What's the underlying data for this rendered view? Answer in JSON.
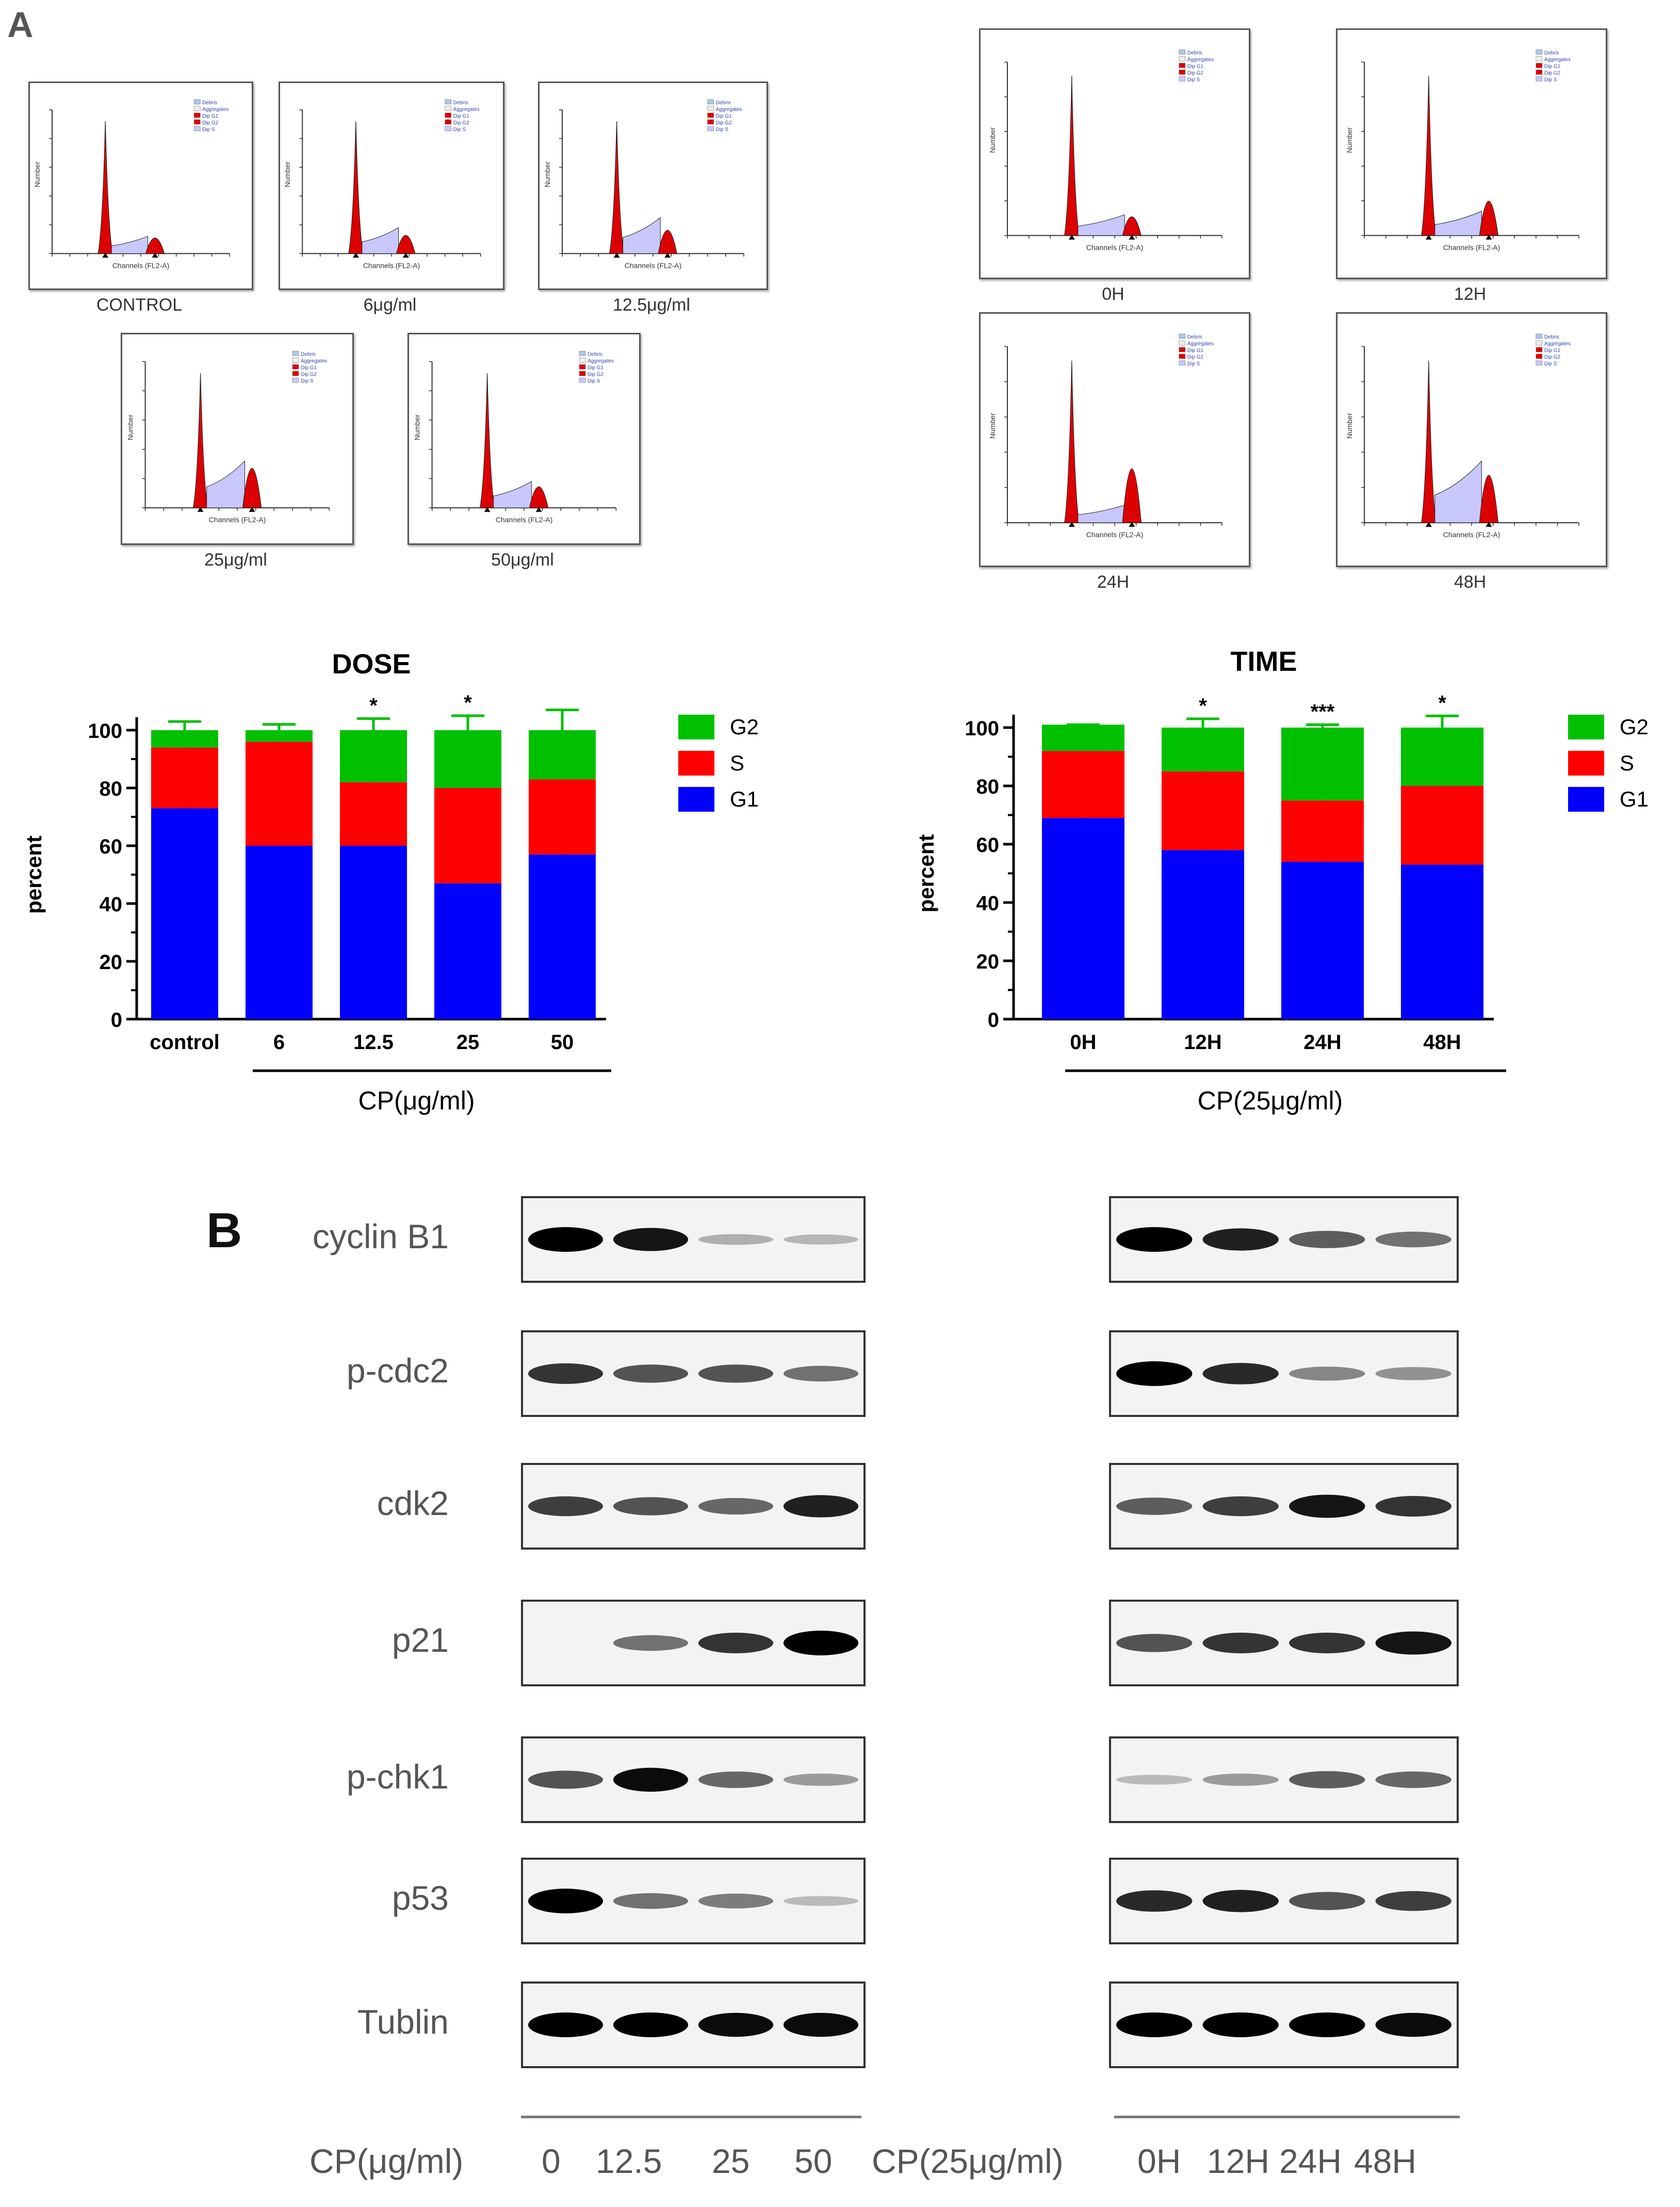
{
  "panels": {
    "a_letter": "A",
    "b_letter": "B"
  },
  "flow_cytometry": {
    "legend_entries": [
      "Debris",
      "Aggregates",
      "Dip G1",
      "Dip G2",
      "Dip S"
    ],
    "axis_labels": {
      "x": "Channels (FL2-A)",
      "y": "Number"
    },
    "dose_panels": [
      {
        "label": "CONTROL",
        "g1": 1.0,
        "s": 0.12,
        "g2": 0.12
      },
      {
        "label": "6μg/ml",
        "g1": 1.0,
        "s": 0.18,
        "g2": 0.14
      },
      {
        "label": "12.5μg/ml",
        "g1": 1.0,
        "s": 0.25,
        "g2": 0.18
      },
      {
        "label": "25μg/ml",
        "g1": 1.0,
        "s": 0.32,
        "g2": 0.3
      },
      {
        "label": "50μg/ml",
        "g1": 1.0,
        "s": 0.18,
        "g2": 0.16
      }
    ],
    "time_panels": [
      {
        "label": "0H",
        "g1": 1.0,
        "s": 0.12,
        "g2": 0.12
      },
      {
        "label": "12H",
        "g1": 1.0,
        "s": 0.14,
        "g2": 0.22
      },
      {
        "label": "24H",
        "g1": 1.0,
        "s": 0.1,
        "g2": 0.34
      },
      {
        "label": "48H",
        "g1": 1.0,
        "s": 0.35,
        "g2": 0.3
      }
    ]
  },
  "chart_data": [
    {
      "type": "bar",
      "stacked": true,
      "title": "DOSE",
      "ylabel": "percent",
      "xlabel": "CP(μg/ml)",
      "ylim": [
        0,
        100
      ],
      "yticks": [
        0,
        20,
        40,
        60,
        80,
        100
      ],
      "categories": [
        "control",
        "6",
        "12.5",
        "25",
        "50"
      ],
      "series": [
        {
          "name": "G1",
          "color": "#0000ff",
          "values": [
            73,
            60,
            60,
            47,
            57
          ],
          "errors": [
            5,
            1,
            6,
            1,
            2
          ]
        },
        {
          "name": "S",
          "color": "#ff0000",
          "values": [
            21,
            36,
            22,
            33,
            26
          ],
          "errors": [
            3,
            3,
            11,
            3,
            6
          ]
        },
        {
          "name": "G2",
          "color": "#00c000",
          "values": [
            6,
            4,
            18,
            20,
            17
          ],
          "errors": [
            3,
            2,
            4,
            5,
            7
          ]
        }
      ],
      "significance": [
        "",
        "",
        "*",
        "*",
        ""
      ],
      "legend_order": [
        "G2",
        "S",
        "G1"
      ],
      "legend": "right"
    },
    {
      "type": "bar",
      "stacked": true,
      "title": "TIME",
      "ylabel": "percent",
      "xlabel": "CP(25μg/ml)",
      "ylim": [
        0,
        100
      ],
      "yticks": [
        0,
        20,
        40,
        60,
        80,
        100
      ],
      "categories": [
        "0H",
        "12H",
        "24H",
        "48H"
      ],
      "series": [
        {
          "name": "G1",
          "color": "#0000ff",
          "values": [
            69,
            58,
            54,
            53
          ],
          "errors": [
            3,
            1,
            6,
            11
          ]
        },
        {
          "name": "S",
          "color": "#ff0000",
          "values": [
            23,
            27,
            21,
            27
          ],
          "errors": [
            3,
            1,
            5,
            7
          ]
        },
        {
          "name": "G2",
          "color": "#00c000",
          "values": [
            9,
            15,
            25,
            20
          ],
          "errors": [
            0,
            3,
            1,
            4
          ]
        }
      ],
      "significance": [
        "",
        "*",
        "***",
        "*"
      ],
      "legend_order": [
        "G2",
        "S",
        "G1"
      ],
      "legend": "right"
    }
  ],
  "western_blot": {
    "proteins": [
      "cyclin B1",
      "p-cdc2",
      "cdk2",
      "p21",
      "p-chk1",
      "p53",
      "Tublin"
    ],
    "dose_intensity": [
      [
        1.0,
        0.9,
        0.15,
        0.12
      ],
      [
        0.75,
        0.6,
        0.6,
        0.45
      ],
      [
        0.7,
        0.6,
        0.5,
        0.85
      ],
      [
        0.0,
        0.45,
        0.75,
        1.0
      ],
      [
        0.6,
        0.95,
        0.5,
        0.25
      ],
      [
        1.0,
        0.45,
        0.4,
        0.1
      ],
      [
        1.0,
        1.0,
        0.95,
        0.95
      ]
    ],
    "time_intensity": [
      [
        1.0,
        0.85,
        0.55,
        0.45
      ],
      [
        1.0,
        0.8,
        0.35,
        0.3
      ],
      [
        0.55,
        0.7,
        0.9,
        0.75
      ],
      [
        0.6,
        0.75,
        0.75,
        0.9
      ],
      [
        0.1,
        0.25,
        0.55,
        0.5
      ],
      [
        0.8,
        0.85,
        0.6,
        0.7
      ],
      [
        1.0,
        1.0,
        1.0,
        0.95
      ]
    ],
    "dose_axis_label": "CP(μg/ml)",
    "dose_lanes": [
      "0",
      "12.5",
      "25",
      "50"
    ],
    "time_axis_label": "CP(25μg/ml)",
    "time_lanes": [
      "0H",
      "12H",
      "24H",
      "48H"
    ]
  }
}
